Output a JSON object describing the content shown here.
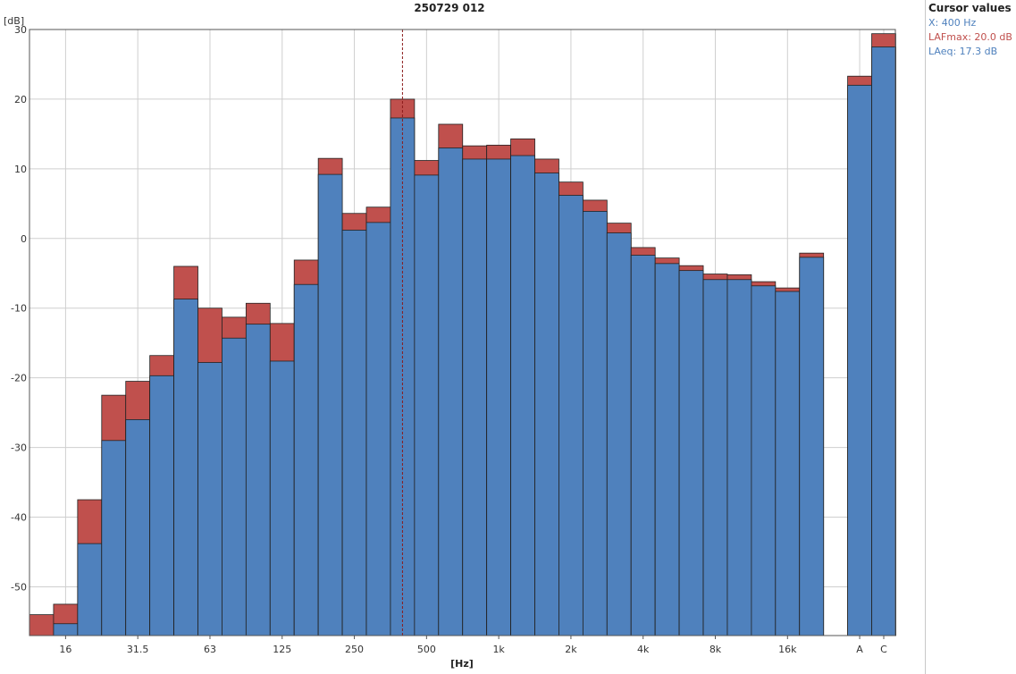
{
  "chart_data": {
    "type": "bar",
    "title": "250729 012",
    "xlabel": "[Hz]",
    "ylabel": "[dB]",
    "ylim": [
      -57,
      30
    ],
    "yticks": [
      30,
      20,
      10,
      0,
      -10,
      -20,
      -30,
      -40,
      -50
    ],
    "grid": true,
    "categories": [
      "12.5",
      "16",
      "20",
      "25",
      "31.5",
      "40",
      "50",
      "63",
      "80",
      "100",
      "125",
      "160",
      "200",
      "250",
      "315",
      "400",
      "500",
      "630",
      "800",
      "1k",
      "1.25k",
      "1.6k",
      "2k",
      "2.5k",
      "3.15k",
      "4k",
      "5k",
      "6.3k",
      "8k",
      "10k",
      "12.5k",
      "16k",
      "20k",
      "A",
      "C"
    ],
    "tick_labels": [
      "16",
      "31.5",
      "63",
      "125",
      "250",
      "500",
      "1k",
      "2k",
      "4k",
      "8k",
      "16k",
      "A",
      "C"
    ],
    "series": [
      {
        "name": "LAFmax",
        "color": "#c0504d",
        "values": [
          -54,
          -52.5,
          -37.5,
          -22.5,
          -20.5,
          -16.8,
          -4,
          -10,
          -11.3,
          -9.3,
          -12.2,
          -3.1,
          11.5,
          3.6,
          4.5,
          20,
          11.2,
          16.4,
          13.3,
          13.4,
          14.3,
          11.4,
          8.1,
          5.5,
          2.2,
          -1.3,
          -2.8,
          -3.9,
          -5.1,
          -5.2,
          -6.2,
          -7.1,
          -2.1,
          23.3,
          29.4
        ]
      },
      {
        "name": "LAeq",
        "color": "#4f81bd",
        "values": [
          null,
          -55.3,
          -43.8,
          -29,
          -26,
          -19.7,
          -8.7,
          -17.8,
          -14.3,
          -12.3,
          -17.6,
          -6.6,
          9.2,
          1.2,
          2.3,
          17.3,
          9.1,
          13,
          11.4,
          11.4,
          11.9,
          9.4,
          6.2,
          3.9,
          0.8,
          -2.4,
          -3.6,
          -4.6,
          -5.9,
          -5.9,
          -6.8,
          -7.6,
          -2.7,
          22,
          27.5
        ]
      }
    ],
    "cursor": {
      "category": "400"
    }
  },
  "cursor_panel": {
    "title": "Cursor values",
    "x_text": "X: 400 Hz",
    "lafmax_text": "LAFmax: 20.0 dB",
    "laeq_text": "LAeq: 17.3 dB",
    "x_color": "#4f81bd",
    "lafmax_color": "#c0504d",
    "laeq_color": "#4f81bd"
  }
}
